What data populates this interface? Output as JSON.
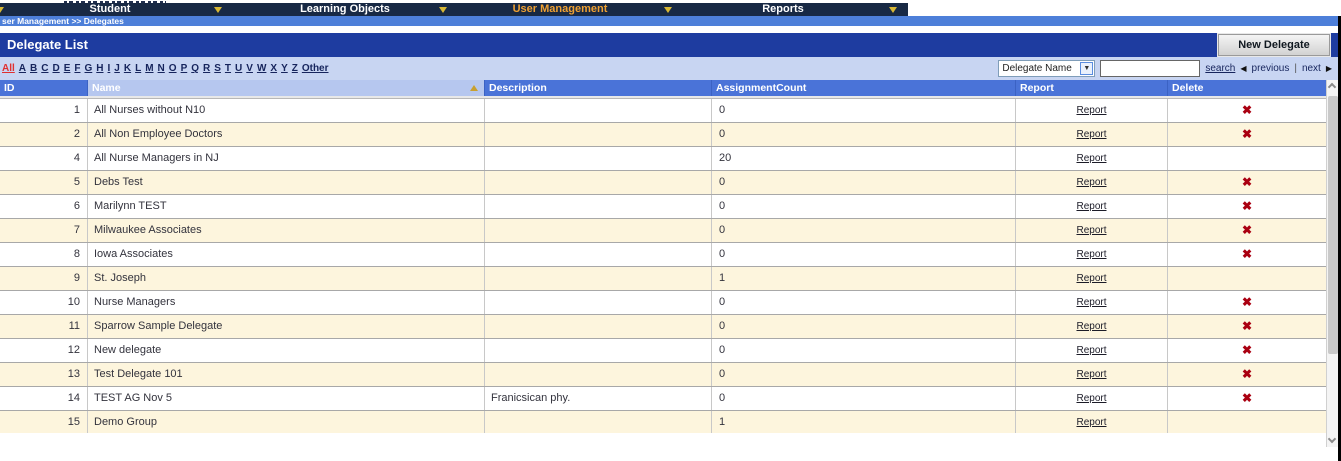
{
  "top": {
    "nav_tabs": [
      {
        "label": "Student",
        "active": false
      },
      {
        "label": "Learning Objects",
        "active": false
      },
      {
        "label": "User Management",
        "active": true
      },
      {
        "label": "Reports",
        "active": false
      }
    ],
    "breadcrumb": "ser Management >> Delegates"
  },
  "header": {
    "title": "Delegate List",
    "new_button_label": "New Delegate"
  },
  "filter": {
    "all_label": "All",
    "letters": [
      "A",
      "B",
      "C",
      "D",
      "E",
      "F",
      "G",
      "H",
      "I",
      "J",
      "K",
      "L",
      "M",
      "N",
      "O",
      "P",
      "Q",
      "R",
      "S",
      "T",
      "U",
      "V",
      "W",
      "X",
      "Y",
      "Z"
    ],
    "other_label": "Other",
    "search_select_value": "Delegate Name",
    "select_arrow_icon": "▼",
    "search_input_value": "",
    "search_label": "search",
    "previous_icon": "◀",
    "previous_label": "previous",
    "pagination_separator": "|",
    "next_label": "next",
    "next_icon": "▶"
  },
  "table": {
    "columns": [
      "ID",
      "Name",
      "Description",
      "AssignmentCount",
      "Report",
      "Delete"
    ],
    "sorted_column": "Name",
    "sort_direction": "ascending",
    "report_link_label": "Report",
    "delete_icon": "✖",
    "rows": [
      {
        "id": "1",
        "name": "All Nurses without N10",
        "description": "",
        "assignment_count": "0",
        "deletable": true
      },
      {
        "id": "2",
        "name": "All Non Employee Doctors",
        "description": "",
        "assignment_count": "0",
        "deletable": true
      },
      {
        "id": "4",
        "name": "All Nurse Managers in NJ",
        "description": "",
        "assignment_count": "20",
        "deletable": false
      },
      {
        "id": "5",
        "name": "Debs Test",
        "description": "",
        "assignment_count": "0",
        "deletable": true
      },
      {
        "id": "6",
        "name": "Marilynn TEST",
        "description": "",
        "assignment_count": "0",
        "deletable": true
      },
      {
        "id": "7",
        "name": "Milwaukee Associates",
        "description": "",
        "assignment_count": "0",
        "deletable": true
      },
      {
        "id": "8",
        "name": "Iowa Associates",
        "description": "",
        "assignment_count": "0",
        "deletable": true
      },
      {
        "id": "9",
        "name": "St. Joseph",
        "description": "",
        "assignment_count": "1",
        "deletable": false
      },
      {
        "id": "10",
        "name": "Nurse Managers",
        "description": "",
        "assignment_count": "0",
        "deletable": true
      },
      {
        "id": "11",
        "name": "Sparrow Sample Delegate",
        "description": "",
        "assignment_count": "0",
        "deletable": true
      },
      {
        "id": "12",
        "name": "New delegate",
        "description": "",
        "assignment_count": "0",
        "deletable": true
      },
      {
        "id": "13",
        "name": "Test Delegate 101",
        "description": "",
        "assignment_count": "0",
        "deletable": true
      },
      {
        "id": "14",
        "name": "TEST AG Nov 5",
        "description": "Franicsican phy.",
        "assignment_count": "0",
        "deletable": true
      },
      {
        "id": "15",
        "name": "Demo Group",
        "description": "",
        "assignment_count": "1",
        "deletable": false
      }
    ]
  },
  "colors": {
    "navbar_bg": "#182944",
    "nav_active_tab": "#f0a132",
    "nav_dropdown_triangle": "#d8b835",
    "breadcrumb_bg": "#4d7fd9",
    "header_bar_bg": "#1e3ca0",
    "filter_bar_bg": "#c8d5f2",
    "table_header_bg": "#4a73d8",
    "sorted_header_bg": "#b6c7ef",
    "row_alt_bg": "#fdf5dd",
    "delete_x": "#aa0011",
    "all_filter_red": "#e03030"
  }
}
